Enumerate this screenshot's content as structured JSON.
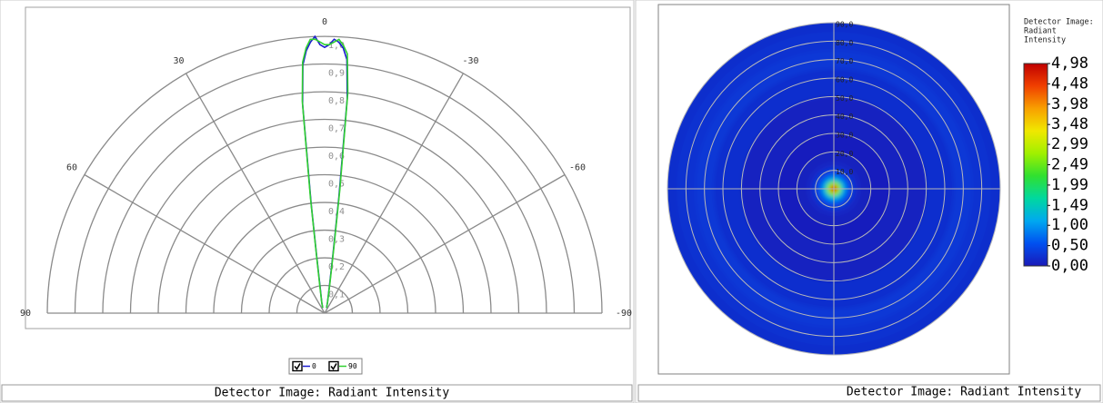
{
  "chart_data": [
    {
      "type": "polar-half",
      "x": [
        -20,
        -15,
        -10,
        -8,
        -7,
        -6,
        -5,
        -4,
        -3,
        -2,
        -1,
        0,
        1,
        2,
        3,
        4,
        5,
        6,
        7,
        8,
        10,
        15,
        20
      ],
      "series": [
        {
          "name": "0",
          "color": "#1a1ad0",
          "values": [
            0.02,
            0.04,
            0.1,
            0.22,
            0.42,
            0.78,
            0.92,
            0.96,
            0.98,
            0.99,
            0.97,
            0.96,
            0.97,
            1.0,
            0.98,
            0.95,
            0.9,
            0.76,
            0.4,
            0.2,
            0.09,
            0.04,
            0.02
          ]
        },
        {
          "name": "90",
          "color": "#30d030",
          "values": [
            0.02,
            0.04,
            0.11,
            0.24,
            0.45,
            0.8,
            0.94,
            0.97,
            0.99,
            0.98,
            0.97,
            0.97,
            0.98,
            0.99,
            0.99,
            0.96,
            0.91,
            0.77,
            0.42,
            0.21,
            0.1,
            0.04,
            0.02
          ]
        }
      ],
      "xticks": [
        90,
        60,
        30,
        0,
        -30,
        -60,
        -90
      ],
      "ylim": [
        0,
        1.0
      ],
      "yticks": [
        {
          "value": 0.1,
          "label": "0,1"
        },
        {
          "value": 0.2,
          "label": "0,2"
        },
        {
          "value": 0.3,
          "label": "0,3"
        },
        {
          "value": 0.4,
          "label": "0,4"
        },
        {
          "value": 0.5,
          "label": "0,5"
        },
        {
          "value": 0.6,
          "label": "0,6"
        },
        {
          "value": 0.7,
          "label": "0,7"
        },
        {
          "value": 0.8,
          "label": "0,8"
        },
        {
          "value": 0.9,
          "label": "0,9"
        },
        {
          "value": 1.0,
          "label": "1,0"
        }
      ],
      "grid": true
    },
    {
      "type": "polar-heatmap",
      "title_lines": [
        "Detector Image:",
        "Radiant",
        "Intensity"
      ],
      "r": [
        0,
        2,
        4,
        6,
        8,
        10,
        12,
        15,
        20,
        30,
        50,
        65,
        75,
        85,
        90
      ],
      "values": [
        4.98,
        4.2,
        2.6,
        1.3,
        0.7,
        0.4,
        0.25,
        0.12,
        0.06,
        0.05,
        0.08,
        0.22,
        0.3,
        0.25,
        0.2
      ],
      "rlim": [
        0,
        90
      ],
      "rticks": [
        {
          "value": 10,
          "label": "10,0"
        },
        {
          "value": 20,
          "label": "20,0"
        },
        {
          "value": 30,
          "label": "30,0"
        },
        {
          "value": 40,
          "label": "40,0"
        },
        {
          "value": 50,
          "label": "50,0"
        },
        {
          "value": 60,
          "label": "60,0"
        },
        {
          "value": 70,
          "label": "70,0"
        },
        {
          "value": 80,
          "label": "80,0"
        },
        {
          "value": 90,
          "label": "90,0"
        }
      ],
      "clim": [
        0,
        4.98
      ],
      "cticks": [
        {
          "value": 0,
          "label": "0,00"
        },
        {
          "value": 0.5,
          "label": "0,50"
        },
        {
          "value": 1.0,
          "label": "1,00"
        },
        {
          "value": 1.49,
          "label": "1,49"
        },
        {
          "value": 1.99,
          "label": "1,99"
        },
        {
          "value": 2.49,
          "label": "2,49"
        },
        {
          "value": 2.99,
          "label": "2,99"
        },
        {
          "value": 3.48,
          "label": "3,48"
        },
        {
          "value": 3.98,
          "label": "3,98"
        },
        {
          "value": 4.48,
          "label": "4,48"
        },
        {
          "value": 4.98,
          "label": "4,98"
        }
      ],
      "colormap": [
        "#1a1ab8",
        "#0050f0",
        "#00a8f0",
        "#00d8a0",
        "#30e030",
        "#a0f000",
        "#f0e800",
        "#f8a000",
        "#f04000",
        "#c00000"
      ],
      "grid": true
    }
  ],
  "panels": [
    {
      "footer": "Detector Image: Radiant Intensity"
    },
    {
      "footer": "Detector Image: Radiant Intensity"
    }
  ]
}
